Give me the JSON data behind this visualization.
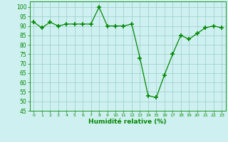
{
  "x": [
    0,
    1,
    2,
    3,
    4,
    5,
    6,
    7,
    8,
    9,
    10,
    11,
    12,
    13,
    14,
    15,
    16,
    17,
    18,
    19,
    20,
    21,
    22,
    23
  ],
  "y": [
    92,
    89,
    92,
    90,
    91,
    91,
    91,
    91,
    100,
    90,
    90,
    90,
    91,
    73,
    53,
    52,
    64,
    75,
    85,
    83,
    86,
    89,
    90,
    89
  ],
  "line_color": "#008800",
  "marker": "+",
  "marker_size": 4,
  "marker_lw": 1.2,
  "bg_color": "#cff0f0",
  "grid_color": "#99cccc",
  "xlabel": "Humidité relative (%)",
  "xlabel_color": "#008800",
  "ylim": [
    45,
    103
  ],
  "yticks": [
    45,
    50,
    55,
    60,
    65,
    70,
    75,
    80,
    85,
    90,
    95,
    100
  ],
  "xlim": [
    -0.5,
    23.5
  ],
  "tick_color": "#008800",
  "axis_color": "#008800",
  "figsize": [
    3.2,
    2.0
  ],
  "dpi": 100
}
